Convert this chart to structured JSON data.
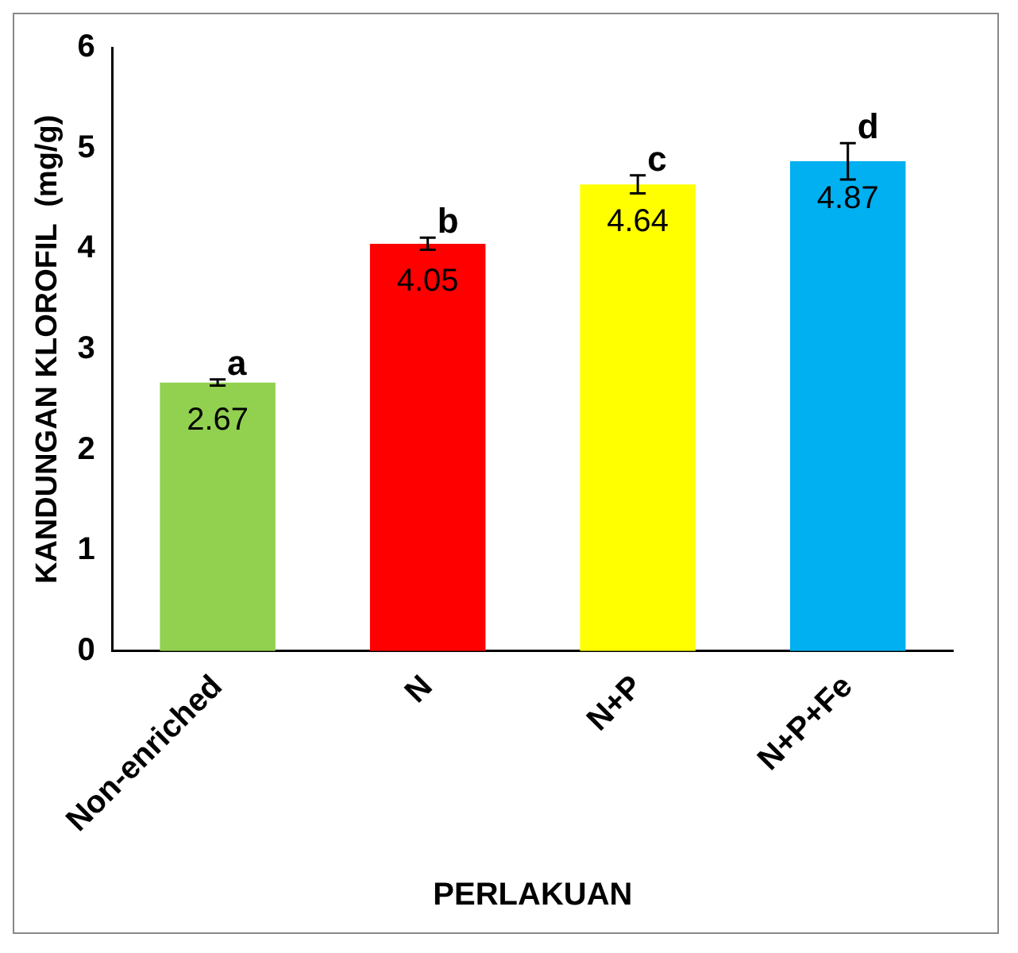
{
  "chart_data": {
    "type": "bar",
    "xlabel": "PERLAKUAN",
    "ylabel": "KANDUNGAN KLOROFIL  (mg/g)",
    "categories": [
      "Non-enriched",
      "N",
      "N+P",
      "N+P+Fe"
    ],
    "values": [
      2.67,
      4.05,
      4.64,
      4.87
    ],
    "colors": [
      "#92d050",
      "#ff0000",
      "#ffff00",
      "#00b0f0"
    ],
    "errors": [
      0.03,
      0.06,
      0.09,
      0.18
    ],
    "data_labels": true,
    "annotations": [
      {
        "text": "a",
        "x": "Non-enriched",
        "y": 2.7
      },
      {
        "text": "b",
        "x": "N",
        "y": 4.11
      },
      {
        "text": "c",
        "x": "N+P",
        "y": 4.73
      },
      {
        "text": "d",
        "x": "N+P+Fe",
        "y": 5.05
      }
    ],
    "ylim": [
      0,
      6
    ],
    "yticks": [
      0,
      1,
      2,
      3,
      4,
      5,
      6
    ],
    "grid": false,
    "legend": false
  }
}
